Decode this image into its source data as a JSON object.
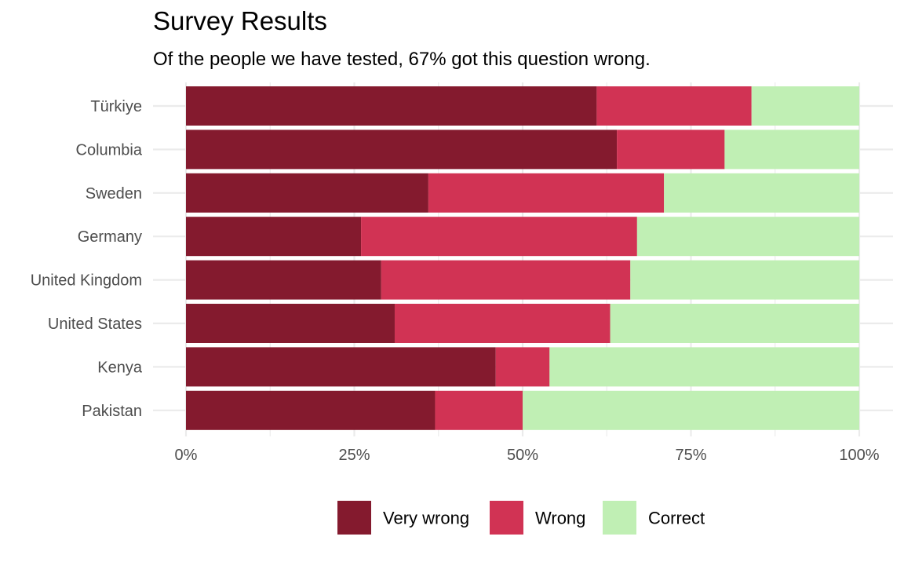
{
  "colors": {
    "Very wrong": "#841A2E",
    "Wrong": "#D13354",
    "Correct": "#C0EFB4",
    "grid": "#EBEBEB",
    "text_dark": "#000000",
    "text_axis": "#4D4D4D"
  },
  "chart_data": {
    "type": "bar",
    "orientation": "horizontal",
    "stacked": true,
    "title": "Survey Results",
    "subtitle": "Of the people we have tested, 67% got this question wrong.",
    "xlabel": "",
    "ylabel": "",
    "xlim": [
      0,
      1
    ],
    "x_ticks": [
      0,
      0.25,
      0.5,
      0.75,
      1
    ],
    "x_tick_labels": [
      "0%",
      "25%",
      "50%",
      "75%",
      "100%"
    ],
    "grid": true,
    "legend_position": "bottom",
    "categories": [
      "Türkiye",
      "Columbia",
      "Sweden",
      "Germany",
      "United Kingdom",
      "United States",
      "Kenya",
      "Pakistan"
    ],
    "series": [
      {
        "name": "Very wrong",
        "values": [
          0.61,
          0.64,
          0.36,
          0.26,
          0.29,
          0.31,
          0.46,
          0.37
        ]
      },
      {
        "name": "Wrong",
        "values": [
          0.23,
          0.16,
          0.35,
          0.41,
          0.37,
          0.32,
          0.08,
          0.13
        ]
      },
      {
        "name": "Correct",
        "values": [
          0.16,
          0.2,
          0.29,
          0.33,
          0.34,
          0.37,
          0.46,
          0.5
        ]
      }
    ]
  }
}
